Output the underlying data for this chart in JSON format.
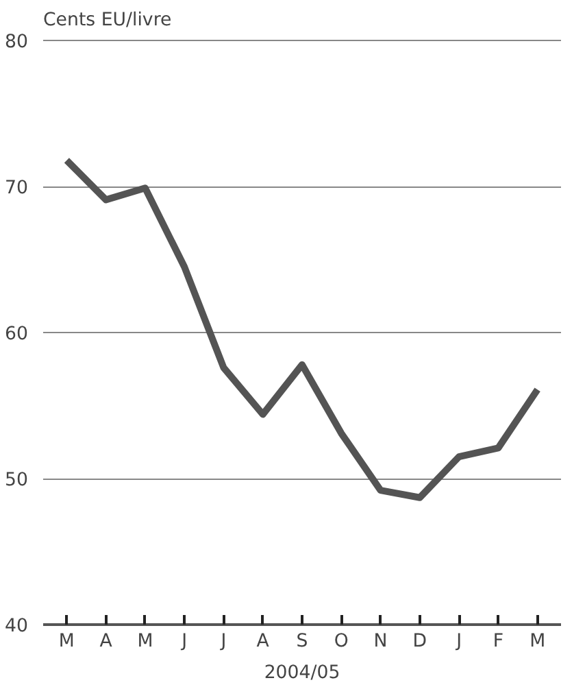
{
  "chart_data": {
    "type": "line",
    "ylabel": "Cents EU/livre",
    "xlabel": "2004/05",
    "categories": [
      "M",
      "A",
      "M",
      "J",
      "J",
      "A",
      "S",
      "O",
      "N",
      "D",
      "J",
      "F",
      "M"
    ],
    "series": [
      {
        "color": "#545454",
        "values": [
          71.8,
          69.1,
          69.9,
          64.5,
          57.6,
          54.4,
          57.8,
          53.1,
          49.2,
          48.7,
          51.5,
          52.1,
          56.1
        ]
      }
    ],
    "ylim": [
      40,
      80
    ],
    "yticks": [
      40,
      50,
      60,
      70,
      80
    ],
    "grid": "y",
    "marker": "none",
    "line_style": "solid"
  }
}
